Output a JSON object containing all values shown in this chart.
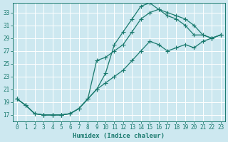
{
  "xlabel": "Humidex (Indice chaleur)",
  "ylabel": "",
  "bg_color": "#cde8f0",
  "grid_color": "#b8d8e8",
  "line_color": "#1a7a6e",
  "xlim": [
    -0.5,
    23.5
  ],
  "ylim": [
    16,
    34.5
  ],
  "xticks": [
    0,
    1,
    2,
    3,
    4,
    5,
    6,
    7,
    8,
    9,
    10,
    11,
    12,
    13,
    14,
    15,
    16,
    17,
    18,
    19,
    20,
    21,
    22,
    23
  ],
  "yticks": [
    17,
    19,
    21,
    23,
    25,
    27,
    29,
    31,
    33
  ],
  "curve1_x": [
    0,
    1,
    2,
    3,
    4,
    5,
    6,
    7,
    8,
    9,
    10,
    11,
    12,
    13,
    14,
    15,
    16,
    17,
    18,
    19,
    20,
    21,
    22,
    23
  ],
  "curve1_y": [
    19.5,
    18.5,
    17.2,
    17.0,
    17.0,
    17.0,
    17.2,
    18.0,
    19.5,
    21.0,
    23.5,
    28.0,
    30.0,
    32.0,
    34.0,
    34.5,
    33.5,
    33.0,
    32.5,
    32.0,
    31.0,
    29.5,
    29.0,
    29.5
  ],
  "curve2_x": [
    0,
    1,
    2,
    3,
    4,
    5,
    6,
    7,
    8,
    9,
    10,
    11,
    12,
    13,
    14,
    15,
    16,
    17,
    18,
    19,
    20,
    21,
    22,
    23
  ],
  "curve2_y": [
    19.5,
    18.5,
    17.2,
    17.0,
    17.0,
    17.0,
    17.2,
    18.0,
    19.5,
    25.5,
    26.0,
    27.0,
    28.0,
    30.0,
    32.0,
    33.0,
    33.5,
    32.5,
    32.0,
    31.0,
    29.5,
    29.5,
    29.0,
    29.5
  ],
  "curve3_x": [
    0,
    1,
    2,
    3,
    4,
    5,
    6,
    7,
    8,
    9,
    10,
    11,
    12,
    13,
    14,
    15,
    16,
    17,
    18,
    19,
    20,
    21,
    22,
    23
  ],
  "curve3_y": [
    19.5,
    18.5,
    17.2,
    17.0,
    17.0,
    17.0,
    17.2,
    18.0,
    19.5,
    21.0,
    22.0,
    23.0,
    24.0,
    25.5,
    27.0,
    28.5,
    28.0,
    27.0,
    27.5,
    28.0,
    27.5,
    28.5,
    29.0,
    29.5
  ]
}
